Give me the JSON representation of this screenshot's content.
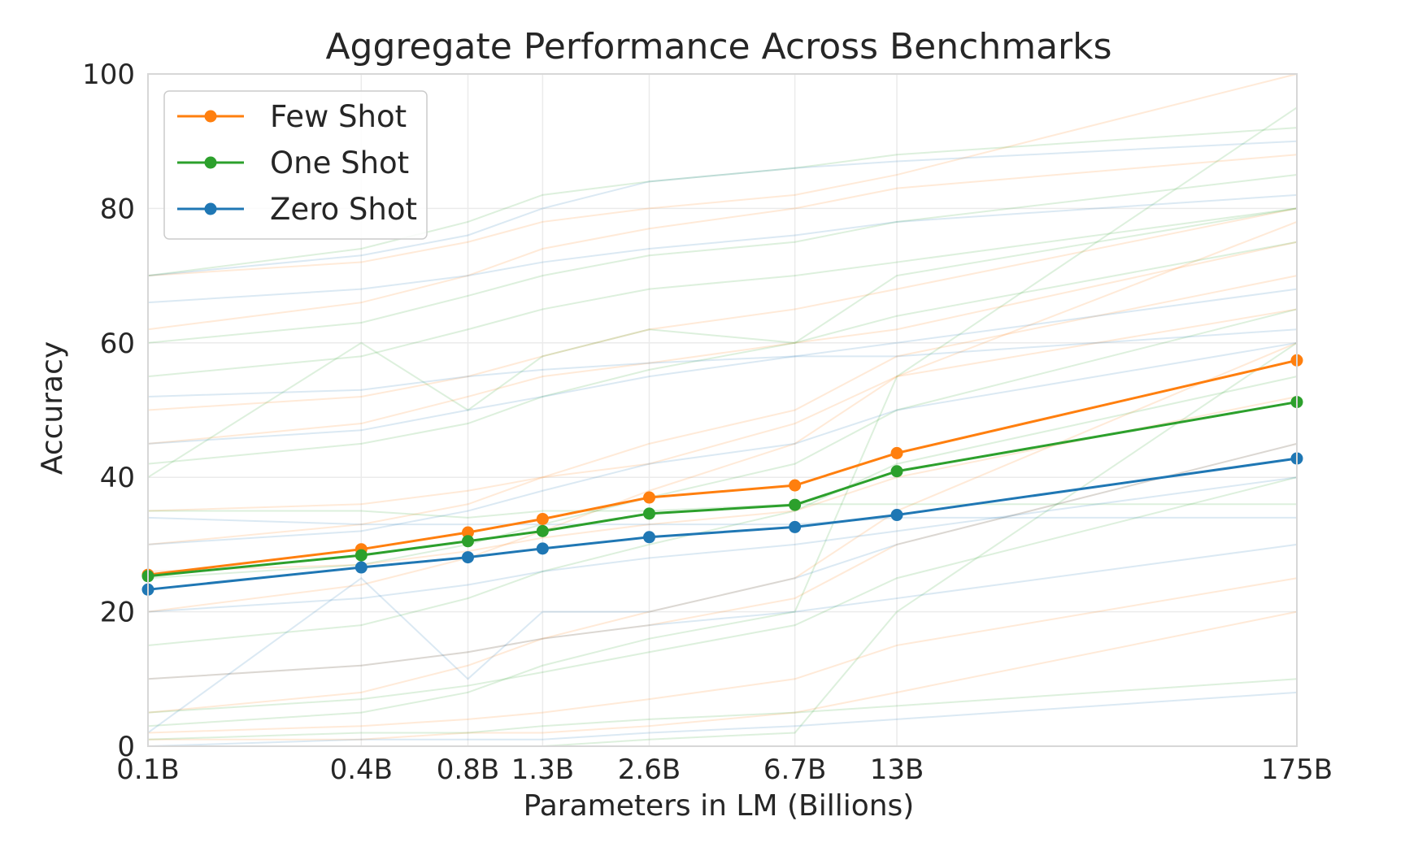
{
  "chart_data": {
    "type": "line",
    "title": "Aggregate Performance Across Benchmarks",
    "xlabel": "Parameters in LM (Billions)",
    "ylabel": "Accuracy",
    "x_scale": "log",
    "x": [
      0.1,
      0.4,
      0.8,
      1.3,
      2.6,
      6.7,
      13,
      175
    ],
    "categories": [
      "0.1B",
      "0.4B",
      "0.8B",
      "1.3B",
      "2.6B",
      "6.7B",
      "13B",
      "175B"
    ],
    "ylim": [
      0,
      100
    ],
    "yticks": [
      "0",
      "20",
      "40",
      "60",
      "80",
      "100"
    ],
    "grid": true,
    "legend_position": "top-left",
    "series": [
      {
        "name": "Few Shot",
        "color": "#ff7f0e",
        "values": [
          25.5,
          29.3,
          31.8,
          33.8,
          37.0,
          38.8,
          43.6,
          57.4
        ]
      },
      {
        "name": "One Shot",
        "color": "#2ca02c",
        "values": [
          25.3,
          28.4,
          30.5,
          32.0,
          34.6,
          35.9,
          40.9,
          51.2
        ]
      },
      {
        "name": "Zero Shot",
        "color": "#1f77b4",
        "values": [
          23.3,
          26.6,
          28.1,
          29.4,
          31.1,
          32.6,
          34.4,
          42.8
        ]
      }
    ],
    "background_series": [
      {
        "color": "#ff7f0e",
        "values": [
          2,
          3,
          4,
          5,
          7,
          10,
          15,
          25
        ]
      },
      {
        "color": "#ff7f0e",
        "values": [
          10,
          12,
          14,
          16,
          18,
          22,
          30,
          45
        ]
      },
      {
        "color": "#ff7f0e",
        "values": [
          30,
          33,
          36,
          40,
          45,
          50,
          58,
          70
        ]
      },
      {
        "color": "#ff7f0e",
        "values": [
          50,
          52,
          55,
          58,
          62,
          65,
          68,
          80
        ]
      },
      {
        "color": "#ff7f0e",
        "values": [
          62,
          66,
          70,
          74,
          77,
          80,
          83,
          88
        ]
      },
      {
        "color": "#ff7f0e",
        "values": [
          1,
          1,
          2,
          2,
          3,
          5,
          8,
          20
        ]
      },
      {
        "color": "#ff7f0e",
        "values": [
          35,
          36,
          38,
          40,
          42,
          48,
          55,
          65
        ]
      },
      {
        "color": "#ff7f0e",
        "values": [
          45,
          48,
          52,
          55,
          57,
          60,
          62,
          75
        ]
      },
      {
        "color": "#ff7f0e",
        "values": [
          5,
          8,
          12,
          16,
          20,
          25,
          35,
          60
        ]
      },
      {
        "color": "#ff7f0e",
        "values": [
          20,
          24,
          28,
          32,
          38,
          45,
          55,
          78
        ]
      },
      {
        "color": "#ff7f0e",
        "values": [
          70,
          72,
          75,
          78,
          80,
          82,
          85,
          100
        ]
      },
      {
        "color": "#ff7f0e",
        "values": [
          26,
          27,
          29,
          31,
          33,
          35,
          40,
          52
        ]
      },
      {
        "color": "#2ca02c",
        "values": [
          1,
          2,
          2,
          3,
          4,
          5,
          6,
          10
        ]
      },
      {
        "color": "#2ca02c",
        "values": [
          5,
          7,
          9,
          11,
          14,
          18,
          25,
          40
        ]
      },
      {
        "color": "#2ca02c",
        "values": [
          25,
          27,
          30,
          33,
          37,
          42,
          50,
          65
        ]
      },
      {
        "color": "#2ca02c",
        "values": [
          42,
          45,
          48,
          52,
          56,
          60,
          64,
          75
        ]
      },
      {
        "color": "#2ca02c",
        "values": [
          60,
          63,
          67,
          70,
          73,
          75,
          78,
          85
        ]
      },
      {
        "color": "#2ca02c",
        "values": [
          0,
          0,
          0,
          0,
          1,
          2,
          20,
          60
        ]
      },
      {
        "color": "#2ca02c",
        "values": [
          40,
          60,
          50,
          58,
          62,
          60,
          70,
          80
        ]
      },
      {
        "color": "#2ca02c",
        "values": [
          3,
          5,
          8,
          12,
          16,
          20,
          55,
          95
        ]
      },
      {
        "color": "#2ca02c",
        "values": [
          15,
          18,
          22,
          26,
          30,
          35,
          42,
          55
        ]
      },
      {
        "color": "#2ca02c",
        "values": [
          35,
          35,
          34,
          35,
          35,
          36,
          36,
          36
        ]
      },
      {
        "color": "#2ca02c",
        "values": [
          55,
          58,
          62,
          65,
          68,
          70,
          72,
          80
        ]
      },
      {
        "color": "#2ca02c",
        "values": [
          70,
          74,
          78,
          82,
          84,
          86,
          88,
          92
        ]
      },
      {
        "color": "#1f77b4",
        "values": [
          0,
          1,
          1,
          1,
          2,
          3,
          4,
          8
        ]
      },
      {
        "color": "#1f77b4",
        "values": [
          2,
          25,
          10,
          20,
          20,
          25,
          30,
          45
        ]
      },
      {
        "color": "#1f77b4",
        "values": [
          20,
          22,
          24,
          26,
          28,
          30,
          32,
          40
        ]
      },
      {
        "color": "#1f77b4",
        "values": [
          45,
          47,
          50,
          52,
          55,
          58,
          60,
          68
        ]
      },
      {
        "color": "#1f77b4",
        "values": [
          66,
          68,
          70,
          72,
          74,
          76,
          78,
          82
        ]
      },
      {
        "color": "#1f77b4",
        "values": [
          70,
          73,
          76,
          80,
          84,
          86,
          87,
          90
        ]
      },
      {
        "color": "#1f77b4",
        "values": [
          10,
          12,
          14,
          16,
          18,
          20,
          22,
          30
        ]
      },
      {
        "color": "#1f77b4",
        "values": [
          52,
          53,
          55,
          56,
          57,
          58,
          58,
          62
        ]
      },
      {
        "color": "#1f77b4",
        "values": [
          34,
          33,
          33,
          33,
          33,
          33,
          34,
          34
        ]
      },
      {
        "color": "#1f77b4",
        "values": [
          30,
          32,
          35,
          38,
          42,
          45,
          50,
          60
        ]
      }
    ]
  }
}
